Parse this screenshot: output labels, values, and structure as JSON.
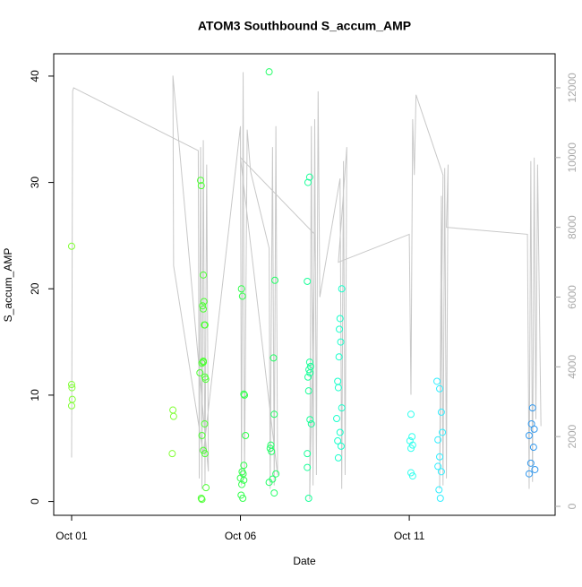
{
  "chart_data": {
    "type": "scatter",
    "title": "ATOM3 Southbound S_accum_AMP",
    "x_label": "Date",
    "y_label": "S_accum_AMP",
    "xlim": [
      0.47,
      15.32
    ],
    "xticks": [
      {
        "value": 1,
        "label": "Oct 01"
      },
      {
        "value": 6,
        "label": "Oct 06"
      },
      {
        "value": 11,
        "label": "Oct 11"
      }
    ],
    "ylim": [
      -1.3,
      42.1
    ],
    "yticks": [
      0,
      10,
      20,
      30,
      40
    ],
    "y2lim": [
      -257,
      12976
    ],
    "y2ticks": [
      0,
      2000,
      4000,
      6000,
      8000,
      10000,
      12000
    ],
    "y2_color": "#aaaaaa",
    "series": [
      {
        "color": "#80ff33",
        "x": [
          1.0,
          1.0,
          1.01,
          1.02,
          1.0
        ],
        "values": [
          24.0,
          11.0,
          10.7,
          9.6,
          9.0
        ]
      },
      {
        "color": "#80ff33",
        "x": [
          4.0,
          4.02,
          3.98
        ],
        "values": [
          8.6,
          8.0,
          4.5
        ]
      },
      {
        "color": "#4dff33",
        "x": [
          4.82,
          4.84,
          4.9,
          4.92,
          4.88,
          4.9,
          4.95,
          4.93,
          4.9,
          4.86,
          4.8,
          4.95,
          4.97,
          4.94,
          4.86,
          4.9,
          4.95,
          4.98,
          4.84,
          4.86,
          4.9
        ],
        "values": [
          30.2,
          29.7,
          21.3,
          18.8,
          18.4,
          18.1,
          16.6,
          16.6,
          13.2,
          13.0,
          12.1,
          11.7,
          11.5,
          7.3,
          6.2,
          4.8,
          4.5,
          1.3,
          0.3,
          0.2,
          13.1
        ]
      },
      {
        "color": "#33ff4d",
        "x": [
          6.03,
          6.06,
          6.1,
          6.12,
          6.15,
          6.1,
          6.05,
          6.08,
          6.0,
          6.1,
          6.04,
          6.02,
          6.07
        ],
        "values": [
          20.0,
          19.3,
          10.1,
          10.0,
          6.2,
          3.4,
          2.8,
          2.6,
          2.2,
          2.0,
          1.6,
          0.6,
          0.3
        ]
      },
      {
        "color": "#22ff66",
        "x": [
          6.85,
          7.02,
          6.98,
          7.0,
          6.9,
          6.88,
          6.92,
          7.05,
          6.95,
          6.85,
          7.0
        ],
        "values": [
          40.4,
          20.8,
          13.5,
          8.2,
          5.3,
          5.0,
          4.7,
          2.6,
          2.1,
          1.8,
          0.8
        ]
      },
      {
        "color": "#1aff99",
        "x": [
          8.05,
          8.0,
          7.98,
          8.05,
          8.08,
          8.03,
          8.06,
          8.0,
          8.02,
          8.06,
          8.1,
          7.98,
          7.98,
          8.02
        ],
        "values": [
          30.5,
          30.0,
          20.7,
          13.1,
          12.7,
          12.4,
          12.1,
          11.7,
          10.4,
          7.7,
          7.3,
          4.5,
          3.2,
          0.3
        ]
      },
      {
        "color": "#1affcc",
        "x": [
          9.0,
          8.95,
          8.93,
          8.97,
          8.92,
          8.88,
          8.9,
          9.0,
          8.85,
          8.95,
          8.88,
          8.98,
          8.9
        ],
        "values": [
          20.0,
          17.2,
          16.2,
          15.0,
          13.6,
          11.3,
          10.7,
          8.8,
          7.8,
          6.5,
          5.7,
          5.2,
          4.1
        ]
      },
      {
        "color": "#33ffee",
        "x": [
          11.05,
          11.08,
          11.02,
          11.1,
          11.05,
          11.05,
          11.1
        ],
        "values": [
          8.2,
          6.1,
          5.7,
          5.3,
          5.0,
          2.7,
          2.4
        ]
      },
      {
        "color": "#33eeff",
        "x": [
          11.82,
          11.9,
          11.95,
          11.98,
          11.85,
          11.9,
          11.85,
          11.95,
          11.88,
          11.92
        ],
        "values": [
          11.3,
          10.6,
          8.4,
          6.5,
          5.8,
          4.2,
          3.3,
          2.8,
          1.1,
          0.3
        ]
      },
      {
        "color": "#3399ee",
        "x": [
          14.65,
          14.62,
          14.7,
          14.55,
          14.68,
          14.6,
          14.72,
          14.55
        ],
        "values": [
          8.8,
          7.3,
          6.8,
          6.2,
          5.1,
          3.6,
          3.0,
          2.6
        ]
      },
      {
        "type": "line",
        "axis": "y2",
        "color": "#c8c8c8",
        "x": [
          1.0,
          1.03,
          1.06,
          4.75,
          4.78,
          4.82,
          4.86,
          4.9,
          4.95,
          5.0,
          5.05,
          4.0,
          4.02,
          4.9,
          6.0,
          6.03,
          6.08,
          6.12,
          6.2,
          6.3,
          6.85,
          6.88,
          6.95,
          7.0,
          7.05,
          7.1,
          6.0,
          8.2,
          8.05,
          8.1,
          8.15,
          8.2,
          8.25,
          8.3,
          8.35,
          8.95,
          9.0,
          9.05,
          9.1,
          9.15,
          8.9,
          11.0,
          11.05,
          11.1,
          11.15,
          11.2,
          12.0,
          11.9,
          11.95,
          12.0,
          12.05,
          12.1,
          12.15,
          12.1,
          14.5,
          14.55,
          14.6,
          14.65,
          14.7,
          14.75,
          14.8,
          14.9
        ],
        "values": [
          1400,
          11900,
          12000,
          10200,
          800,
          10300,
          500,
          10500,
          600,
          9800,
          1000,
          12350,
          6900,
          1500,
          10900,
          600,
          12450,
          800,
          10800,
          9600,
          7400,
          500,
          10300,
          600,
          10900,
          900,
          10000,
          7800,
          200,
          10900,
          600,
          11100,
          900,
          11900,
          6000,
          9400,
          500,
          9900,
          900,
          10300,
          7000,
          7800,
          3200,
          11100,
          9500,
          11800,
          9500,
          500,
          8900,
          600,
          9700,
          800,
          9800,
          8000,
          7800,
          500,
          9900,
          700,
          10000,
          2500,
          9800,
          2300
        ]
      }
    ]
  }
}
